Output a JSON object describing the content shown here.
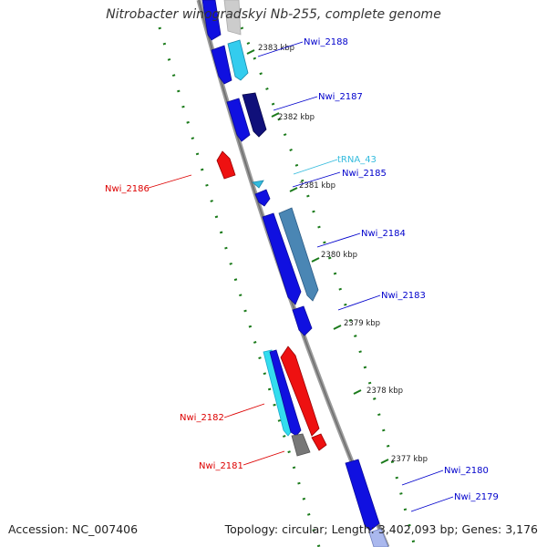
{
  "title": "Nitrobacter winogradskyi Nb-255, complete genome",
  "accession": "Accession: NC_007406",
  "summary": "Topology: circular; Length: 3,402,093 bp; Genes: 3,176",
  "tick_labels": [
    "2383 kbp",
    "2382 kbp",
    "2381 kbp",
    "2380 kbp",
    "2379 kbp",
    "2378 kbp",
    "2377 kbp"
  ],
  "colors": {
    "forward_gene": "#1010e0",
    "forward_gene_light": "#33ccee",
    "forward_gene_dark": "#10107a",
    "forward_gene_steel": "#4a86b4",
    "reverse_gene": "#ee1111",
    "trna": "#33bbdd",
    "backbone": "#8a8a8a",
    "ticks": "#1a7a1a",
    "label_forward": "#0000cc",
    "label_reverse": "#dd0000",
    "label_trna": "#33bbdd"
  },
  "genes": [
    {
      "name": "Nwi_2188",
      "strand": "forward"
    },
    {
      "name": "Nwi_2187",
      "strand": "forward"
    },
    {
      "name": "tRNA_43",
      "strand": "forward",
      "type": "tRNA"
    },
    {
      "name": "Nwi_2185",
      "strand": "forward"
    },
    {
      "name": "Nwi_2186",
      "strand": "reverse"
    },
    {
      "name": "Nwi_2184",
      "strand": "forward"
    },
    {
      "name": "Nwi_2183",
      "strand": "forward"
    },
    {
      "name": "Nwi_2182",
      "strand": "reverse"
    },
    {
      "name": "Nwi_2181",
      "strand": "reverse"
    },
    {
      "name": "Nwi_2180",
      "strand": "forward"
    },
    {
      "name": "Nwi_2179",
      "strand": "forward"
    }
  ]
}
